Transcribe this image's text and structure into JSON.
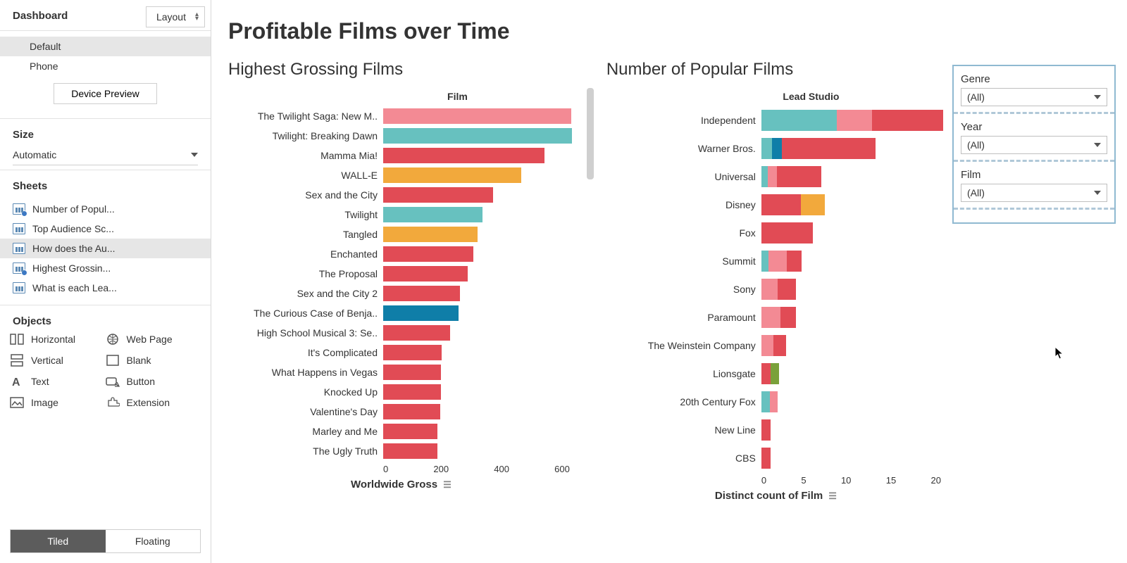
{
  "sidebar": {
    "tabs": {
      "dashboard": "Dashboard",
      "layout": "Layout"
    },
    "active_tab": "dashboard",
    "devices": [
      "Default",
      "Phone"
    ],
    "device_selected": "Default",
    "device_preview_btn": "Device Preview",
    "size_head": "Size",
    "size_value": "Automatic",
    "sheets_head": "Sheets",
    "sheets": [
      {
        "label": "Number of Popul...",
        "checked": true,
        "selected": false
      },
      {
        "label": "Top Audience Sc...",
        "checked": false,
        "selected": false
      },
      {
        "label": "How does the Au...",
        "checked": false,
        "selected": true
      },
      {
        "label": "Highest Grossin...",
        "checked": true,
        "selected": false
      },
      {
        "label": "What is each Lea...",
        "checked": false,
        "selected": false
      }
    ],
    "objects_head": "Objects",
    "objects": [
      {
        "key": "horizontal",
        "label": "Horizontal"
      },
      {
        "key": "webpage",
        "label": "Web Page"
      },
      {
        "key": "vertical",
        "label": "Vertical"
      },
      {
        "key": "blank",
        "label": "Blank"
      },
      {
        "key": "text",
        "label": "Text"
      },
      {
        "key": "button",
        "label": "Button"
      },
      {
        "key": "image",
        "label": "Image"
      },
      {
        "key": "extension",
        "label": "Extension"
      }
    ],
    "tiled": "Tiled",
    "floating": "Floating",
    "placement_active": "tiled"
  },
  "dashboard": {
    "title": "Profitable Films over Time",
    "chart_left": {
      "title": "Highest Grossing Films",
      "column_header": "Film",
      "axis_title": "Worldwide Gross",
      "type": "bar-horizontal",
      "x_max": 720,
      "ticks": [
        "0",
        "200",
        "400",
        "600"
      ],
      "colors": {
        "red": "#e14b55",
        "teal": "#67c1bf",
        "orange": "#f2a93c",
        "pink": "#f38a94",
        "darkblue": "#0f7ea8",
        "green": "#7aa13a"
      },
      "bars": [
        {
          "label": "The Twilight Saga: New M..",
          "value": 710,
          "color": "pink"
        },
        {
          "label": "Twilight: Breaking Dawn",
          "value": 712,
          "color": "teal"
        },
        {
          "label": "Mamma Mia!",
          "value": 610,
          "color": "red"
        },
        {
          "label": "WALL-E",
          "value": 520,
          "color": "orange"
        },
        {
          "label": "Sex and the City",
          "value": 415,
          "color": "red"
        },
        {
          "label": "Twilight",
          "value": 375,
          "color": "teal"
        },
        {
          "label": "Tangled",
          "value": 355,
          "color": "orange"
        },
        {
          "label": "Enchanted",
          "value": 340,
          "color": "red"
        },
        {
          "label": "The Proposal",
          "value": 318,
          "color": "red"
        },
        {
          "label": "Sex and the City 2",
          "value": 290,
          "color": "red"
        },
        {
          "label": "The Curious Case of Benja..",
          "value": 285,
          "color": "darkblue"
        },
        {
          "label": "High School Musical 3: Se..",
          "value": 252,
          "color": "red"
        },
        {
          "label": "It's Complicated",
          "value": 220,
          "color": "red"
        },
        {
          "label": "What Happens in Vegas",
          "value": 219,
          "color": "red"
        },
        {
          "label": "Knocked Up",
          "value": 219,
          "color": "red"
        },
        {
          "label": "Valentine's Day",
          "value": 216,
          "color": "red"
        },
        {
          "label": "Marley and Me",
          "value": 206,
          "color": "red"
        },
        {
          "label": "The Ugly Truth",
          "value": 205,
          "color": "red"
        }
      ]
    },
    "chart_right": {
      "title": "Number of Popular Films",
      "column_header": "Lead Studio",
      "axis_title": "Distinct count of Film",
      "type": "stacked-bar-horizontal",
      "x_max": 20,
      "ticks": [
        "0",
        "5",
        "10",
        "15",
        "20"
      ],
      "rows": [
        {
          "label": "Independent",
          "segments": [
            {
              "v": 8.2,
              "color": "teal"
            },
            {
              "v": 3.8,
              "color": "pink"
            },
            {
              "v": 7.8,
              "color": "red"
            }
          ]
        },
        {
          "label": "Warner Bros.",
          "segments": [
            {
              "v": 1.2,
              "color": "teal"
            },
            {
              "v": 1.0,
              "color": "darkblue"
            },
            {
              "v": 10.2,
              "color": "red"
            }
          ]
        },
        {
          "label": "Universal",
          "segments": [
            {
              "v": 0.7,
              "color": "teal"
            },
            {
              "v": 1.0,
              "color": "pink"
            },
            {
              "v": 4.8,
              "color": "red"
            }
          ]
        },
        {
          "label": "Disney",
          "segments": [
            {
              "v": 4.3,
              "color": "red"
            },
            {
              "v": 2.6,
              "color": "orange"
            }
          ]
        },
        {
          "label": "Fox",
          "segments": [
            {
              "v": 5.6,
              "color": "red"
            }
          ]
        },
        {
          "label": "Summit",
          "segments": [
            {
              "v": 0.8,
              "color": "teal"
            },
            {
              "v": 2.0,
              "color": "pink"
            },
            {
              "v": 1.6,
              "color": "red"
            }
          ]
        },
        {
          "label": "Sony",
          "segments": [
            {
              "v": 1.8,
              "color": "pink"
            },
            {
              "v": 2.0,
              "color": "red"
            }
          ]
        },
        {
          "label": "Paramount",
          "segments": [
            {
              "v": 2.1,
              "color": "pink"
            },
            {
              "v": 1.7,
              "color": "red"
            }
          ]
        },
        {
          "label": "The Weinstein Company",
          "segments": [
            {
              "v": 1.3,
              "color": "pink"
            },
            {
              "v": 1.4,
              "color": "red"
            }
          ]
        },
        {
          "label": "Lionsgate",
          "segments": [
            {
              "v": 1.0,
              "color": "red"
            },
            {
              "v": 0.9,
              "color": "green"
            }
          ]
        },
        {
          "label": "20th Century Fox",
          "segments": [
            {
              "v": 0.9,
              "color": "teal"
            },
            {
              "v": 0.9,
              "color": "pink"
            }
          ]
        },
        {
          "label": "New Line",
          "segments": [
            {
              "v": 1.0,
              "color": "red"
            }
          ]
        },
        {
          "label": "CBS",
          "segments": [
            {
              "v": 1.0,
              "color": "red"
            }
          ]
        }
      ]
    },
    "filters": [
      {
        "label": "Genre",
        "value": "(All)"
      },
      {
        "label": "Year",
        "value": "(All)"
      },
      {
        "label": "Film",
        "value": "(All)"
      }
    ]
  }
}
